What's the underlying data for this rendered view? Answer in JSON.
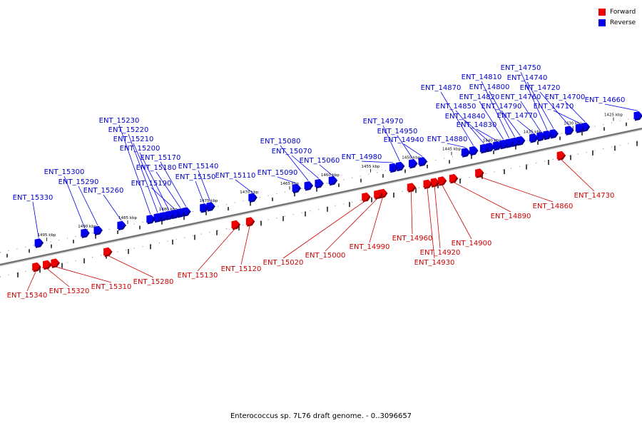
{
  "caption": "Enterococcus sp. 7L76 draft genome. - 0..3096657",
  "legend": [
    {
      "label": "Forward",
      "color": "#ee0000"
    },
    {
      "label": "Reverse",
      "color": "#0000ee"
    }
  ],
  "colors": {
    "forward": "#ee0000",
    "reverse": "#0000ee",
    "backbone": "#707070"
  },
  "ticks": [
    {
      "label": "1425 kbp",
      "kbp": 1425
    },
    {
      "label": "1430 kbp",
      "kbp": 1430
    },
    {
      "label": "1435 kbp",
      "kbp": 1435
    },
    {
      "label": "1440 kbp",
      "kbp": 1440
    },
    {
      "label": "1445 kbp",
      "kbp": 1445
    },
    {
      "label": "1450 kbp",
      "kbp": 1450
    },
    {
      "label": "1455 kbp",
      "kbp": 1455
    },
    {
      "label": "1460 kbp",
      "kbp": 1460
    },
    {
      "label": "1465 kbp",
      "kbp": 1465
    },
    {
      "label": "1470 kbp",
      "kbp": 1470
    },
    {
      "label": "1475 kbp",
      "kbp": 1475
    },
    {
      "label": "1480 kbp",
      "kbp": 1480
    },
    {
      "label": "1485 kbp",
      "kbp": 1485
    },
    {
      "label": "1490 kbp",
      "kbp": 1490
    },
    {
      "label": "1495 kbp",
      "kbp": 1495
    }
  ],
  "genes": [
    {
      "id": "ENT_14660",
      "strand": "reverse",
      "kbp": 1422.0
    },
    {
      "id": "ENT_14700",
      "strand": "reverse",
      "kbp": 1428.5
    },
    {
      "id": "ENT_14710",
      "strand": "reverse",
      "kbp": 1429.2
    },
    {
      "id": "ENT_14720",
      "strand": "reverse",
      "kbp": 1430.5
    },
    {
      "id": "ENT_14730",
      "strand": "forward",
      "kbp": 1431.5
    },
    {
      "id": "ENT_14740",
      "strand": "reverse",
      "kbp": 1432.4
    },
    {
      "id": "ENT_14750",
      "strand": "reverse",
      "kbp": 1433.2
    },
    {
      "id": "ENT_14760",
      "strand": "reverse",
      "kbp": 1434.0
    },
    {
      "id": "ENT_14770",
      "strand": "reverse",
      "kbp": 1434.9
    },
    {
      "id": "ENT_14790",
      "strand": "reverse",
      "kbp": 1436.5
    },
    {
      "id": "ENT_14800",
      "strand": "reverse",
      "kbp": 1437.2
    },
    {
      "id": "ENT_14810",
      "strand": "reverse",
      "kbp": 1437.9
    },
    {
      "id": "ENT_14820",
      "strand": "reverse",
      "kbp": 1438.6
    },
    {
      "id": "ENT_14830",
      "strand": "reverse",
      "kbp": 1439.4
    },
    {
      "id": "ENT_14840",
      "strand": "reverse",
      "kbp": 1440.3
    },
    {
      "id": "ENT_14850",
      "strand": "reverse",
      "kbp": 1441.0
    },
    {
      "id": "ENT_14860",
      "strand": "forward",
      "kbp": 1441.6
    },
    {
      "id": "ENT_14870",
      "strand": "reverse",
      "kbp": 1442.3
    },
    {
      "id": "ENT_14880",
      "strand": "reverse",
      "kbp": 1443.3
    },
    {
      "id": "ENT_14890",
      "strand": "forward",
      "kbp": 1444.8
    },
    {
      "id": "ENT_14900",
      "strand": "forward",
      "kbp": 1446.2
    },
    {
      "id": "ENT_14920",
      "strand": "forward",
      "kbp": 1447.1
    },
    {
      "id": "ENT_14930",
      "strand": "forward",
      "kbp": 1448.0
    },
    {
      "id": "ENT_14940",
      "strand": "reverse",
      "kbp": 1448.6
    },
    {
      "id": "ENT_14950",
      "strand": "reverse",
      "kbp": 1449.8
    },
    {
      "id": "ENT_14960",
      "strand": "forward",
      "kbp": 1450.0
    },
    {
      "id": "ENT_14970",
      "strand": "reverse",
      "kbp": 1451.4
    },
    {
      "id": "ENT_14980",
      "strand": "reverse",
      "kbp": 1452.2
    },
    {
      "id": "ENT_14990",
      "strand": "forward",
      "kbp": 1453.5
    },
    {
      "id": "ENT_15000",
      "strand": "forward",
      "kbp": 1454.1
    },
    {
      "id": "ENT_15020",
      "strand": "forward",
      "kbp": 1455.6
    },
    {
      "id": "ENT_15060",
      "strand": "reverse",
      "kbp": 1459.7
    },
    {
      "id": "ENT_15070",
      "strand": "reverse",
      "kbp": 1461.4
    },
    {
      "id": "ENT_15080",
      "strand": "reverse",
      "kbp": 1462.7
    },
    {
      "id": "ENT_15090",
      "strand": "reverse",
      "kbp": 1464.2
    },
    {
      "id": "ENT_15110",
      "strand": "reverse",
      "kbp": 1469.6
    },
    {
      "id": "ENT_15120",
      "strand": "forward",
      "kbp": 1469.9
    },
    {
      "id": "ENT_15130",
      "strand": "forward",
      "kbp": 1471.7
    },
    {
      "id": "ENT_15140",
      "strand": "reverse",
      "kbp": 1474.8
    },
    {
      "id": "ENT_15150",
      "strand": "reverse",
      "kbp": 1475.6
    },
    {
      "id": "ENT_15170",
      "strand": "reverse",
      "kbp": 1477.8
    },
    {
      "id": "ENT_15180",
      "strand": "reverse",
      "kbp": 1478.5
    },
    {
      "id": "ENT_15190",
      "strand": "reverse",
      "kbp": 1479.2
    },
    {
      "id": "ENT_15200",
      "strand": "reverse",
      "kbp": 1479.9
    },
    {
      "id": "ENT_15210",
      "strand": "reverse",
      "kbp": 1480.6
    },
    {
      "id": "ENT_15220",
      "strand": "reverse",
      "kbp": 1481.3
    },
    {
      "id": "ENT_15230",
      "strand": "reverse",
      "kbp": 1482.2
    },
    {
      "id": "ENT_15260",
      "strand": "reverse",
      "kbp": 1485.8
    },
    {
      "id": "ENT_15280",
      "strand": "forward",
      "kbp": 1487.5
    },
    {
      "id": "ENT_15290",
      "strand": "reverse",
      "kbp": 1488.7
    },
    {
      "id": "ENT_15300",
      "strand": "reverse",
      "kbp": 1490.3
    },
    {
      "id": "ENT_15310",
      "strand": "forward",
      "kbp": 1494.0
    },
    {
      "id": "ENT_15320",
      "strand": "forward",
      "kbp": 1495.0
    },
    {
      "id": "ENT_15330",
      "strand": "reverse",
      "kbp": 1496.0
    },
    {
      "id": "ENT_15340",
      "strand": "forward",
      "kbp": 1496.3
    }
  ]
}
